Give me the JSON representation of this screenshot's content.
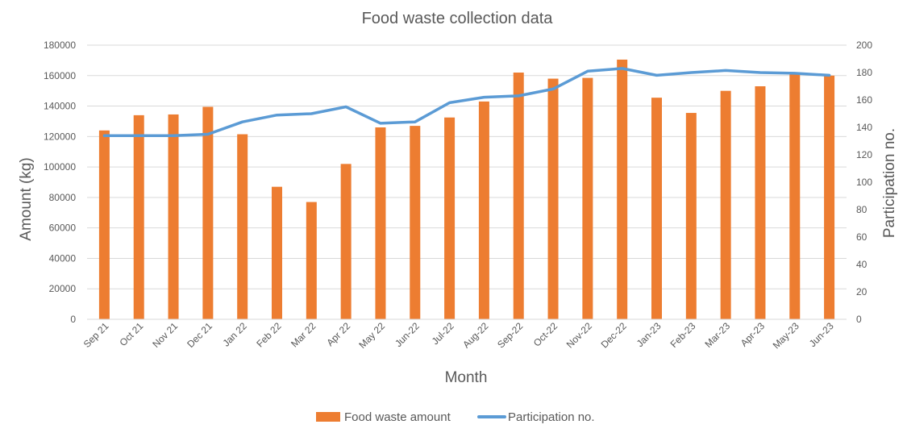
{
  "chart_data": {
    "type": "bar",
    "title": "Food waste collection data",
    "xlabel": "Month",
    "ylabel": "Amount (kg)",
    "y2label": "Participation no.",
    "ylim": [
      0,
      180000
    ],
    "y2lim": [
      0,
      200
    ],
    "yticks": [
      0,
      20000,
      40000,
      60000,
      80000,
      100000,
      120000,
      140000,
      160000,
      180000
    ],
    "y2ticks": [
      0,
      20,
      40,
      60,
      80,
      100,
      120,
      140,
      160,
      180,
      200
    ],
    "grid": true,
    "legend": "bottom",
    "categories": [
      "Sep 21",
      "Oct 21",
      "Nov 21",
      "Dec 21",
      "Jan 22",
      "Feb 22",
      "Mar 22",
      "Apr 22",
      "May 22",
      "Jun-22",
      "Jul-22",
      "Aug-22",
      "Sep-22",
      "Oct-22",
      "Nov-22",
      "Dec-22",
      "Jan-23",
      "Feb-23",
      "Mar-23",
      "Apr-23",
      "May-23",
      "Jun-23"
    ],
    "series": [
      {
        "name": "Food waste amount",
        "type": "bar",
        "axis": "left",
        "color": "#ED7D31",
        "values": [
          124000,
          134000,
          134500,
          139500,
          121500,
          87000,
          77000,
          102000,
          126000,
          127000,
          132500,
          143000,
          162000,
          158000,
          158500,
          170500,
          145500,
          135500,
          150000,
          153000,
          161000,
          160000
        ]
      },
      {
        "name": "Participation no.",
        "type": "line",
        "axis": "right",
        "color": "#5B9BD5",
        "values": [
          134,
          134,
          134,
          135,
          144,
          149,
          150,
          155,
          143,
          144,
          158,
          162,
          163,
          168,
          181,
          183,
          178,
          180,
          181.5,
          180,
          179.5,
          178
        ]
      }
    ]
  }
}
